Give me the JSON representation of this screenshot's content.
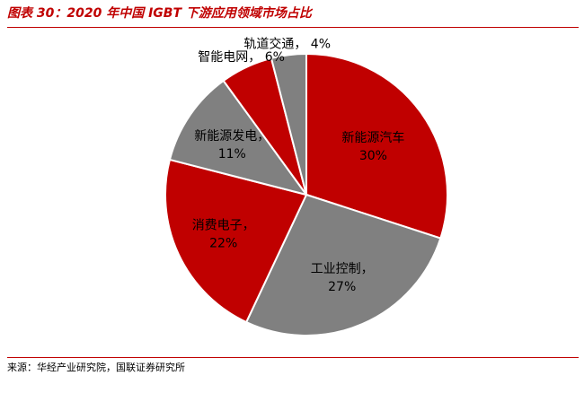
{
  "figure": {
    "title": "图表 30：2020 年中国 IGBT 下游应用领域市场占比",
    "source": "来源：华经产业研究院，国联证券研究所",
    "accent_color": "#c00000"
  },
  "chart_data": {
    "type": "pie",
    "title": "",
    "categories": [
      "新能源汽车",
      "工业控制",
      "消费电子",
      "新能源发电",
      "智能电网",
      "轨道交通"
    ],
    "values": [
      30,
      27,
      22,
      11,
      6,
      4
    ],
    "unit": "%",
    "colors": [
      "#c00000",
      "#808080",
      "#c00000",
      "#808080",
      "#c00000",
      "#808080"
    ],
    "labels": [
      {
        "name": "新能源汽车",
        "value_text": "30%"
      },
      {
        "name": "工业控制，",
        "value_text": "27%"
      },
      {
        "name": "消费电子，",
        "value_text": "22%"
      },
      {
        "name": "新能源发电，",
        "value_text": "11%"
      },
      {
        "name": "智能电网，",
        "value_text": "6%"
      },
      {
        "name": "轨道交通，",
        "value_text": "4%"
      }
    ],
    "start_angle": "12 o'clock",
    "direction": "clockwise",
    "legend": "none"
  }
}
